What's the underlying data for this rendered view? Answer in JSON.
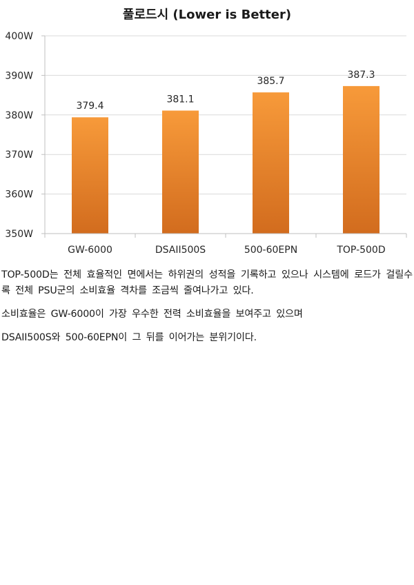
{
  "chart_data": {
    "type": "bar",
    "title": "풀로드시 (Lower is Better)",
    "categories": [
      "GW-6000",
      "DSAII500S",
      "500-60EPN",
      "TOP-500D"
    ],
    "values": [
      379.4,
      381.1,
      385.7,
      387.3
    ],
    "value_labels": [
      "379.4",
      "381.1",
      "385.7",
      "387.3"
    ],
    "y_ticks": [
      "350W",
      "360W",
      "370W",
      "380W",
      "390W",
      "400W"
    ],
    "ylim": [
      350,
      400
    ],
    "y_unit": "W",
    "grid": true,
    "legend": "none",
    "colors": {
      "bar_top": "#F79A3A",
      "bar_bottom": "#D26C1E",
      "grid": "#D9D9D9",
      "axis": "#BFBFBF"
    }
  },
  "article": {
    "paragraphs": [
      "TOP-500D는 전체 효율적인 면에서는 하위권의 성적을 기록하고 있으나 시스템에 로드가 걸릴수록 전체 PSU군의 소비효율 격차를 조금씩 줄여나가고 있다.",
      "소비효율은 GW-6000이 가장 우수한 전력 소비효율을 보여주고 있으며",
      "DSAII500S와 500-60EPN이 그 뒤를 이어가는 분위기이다."
    ]
  }
}
